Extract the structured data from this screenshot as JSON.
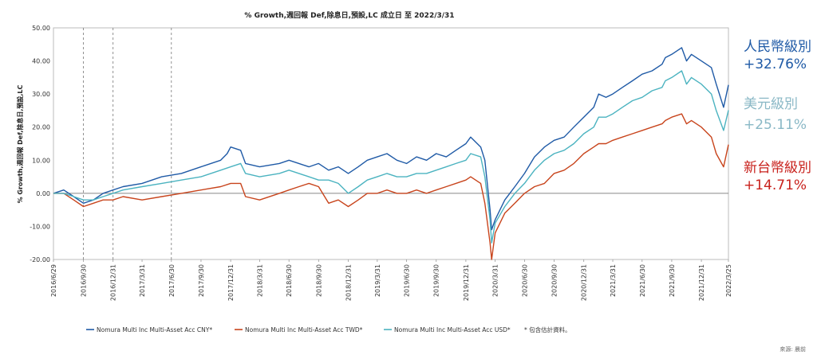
{
  "chart_data": {
    "type": "line",
    "title": "% Growth,週回報 Def,除息日,預設,LC 成立日 至 2022/3/31",
    "ylabel": "% Growth,週回報 Def,除息日,預設,LC",
    "ylim": [
      -20,
      50
    ],
    "yticks": [
      "50.00",
      "40.00",
      "30.00",
      "20.00",
      "10.00",
      "0.00",
      "-10.00",
      "-20.00"
    ],
    "ytick_values": [
      50,
      40,
      30,
      20,
      10,
      0,
      -10,
      -20
    ],
    "xlim": [
      "2016-06-29",
      "2022-03-25"
    ],
    "xticks": [
      "2016/6/29",
      "2016/9/30",
      "2016/12/31",
      "2017/3/31",
      "2017/6/30",
      "2017/9/30",
      "2017/12/31",
      "2018/3/31",
      "2018/6/30",
      "2018/9/30",
      "2018/12/31",
      "2019/3/31",
      "2019/6/30",
      "2019/9/30",
      "2019/12/31",
      "2020/3/31",
      "2020/6/30",
      "2020/9/30",
      "2020/12/31",
      "2021/3/31",
      "2021/6/30",
      "2021/9/30",
      "2021/12/31",
      "2022/3/25"
    ],
    "dashed_gridline_dates": [
      "2016-09-30",
      "2016-12-31",
      "2017-06-30"
    ],
    "grid": "vertical dashed lines at selected dates, solid zero line",
    "legend_position": "bottom",
    "series": [
      {
        "name": "Nomura Multi Inc Multi-Asset Acc CNY*",
        "color": "#1f5aa6",
        "x": [
          "2016-06-29",
          "2016-07-31",
          "2016-08-31",
          "2016-09-30",
          "2016-10-31",
          "2016-11-30",
          "2016-12-31",
          "2017-01-31",
          "2017-03-31",
          "2017-05-31",
          "2017-07-31",
          "2017-09-30",
          "2017-11-30",
          "2017-12-20",
          "2017-12-31",
          "2018-01-31",
          "2018-02-15",
          "2018-03-31",
          "2018-05-31",
          "2018-06-30",
          "2018-07-31",
          "2018-08-31",
          "2018-09-30",
          "2018-10-31",
          "2018-11-30",
          "2018-12-31",
          "2019-01-31",
          "2019-02-28",
          "2019-03-31",
          "2019-04-30",
          "2019-05-31",
          "2019-06-30",
          "2019-07-31",
          "2019-08-31",
          "2019-09-30",
          "2019-10-31",
          "2019-11-30",
          "2019-12-31",
          "2020-01-15",
          "2020-02-15",
          "2020-02-28",
          "2020-03-15",
          "2020-03-20",
          "2020-03-31",
          "2020-04-30",
          "2020-05-31",
          "2020-06-30",
          "2020-07-31",
          "2020-08-31",
          "2020-09-30",
          "2020-10-31",
          "2020-11-30",
          "2020-12-31",
          "2021-01-31",
          "2021-02-15",
          "2021-03-10",
          "2021-03-31",
          "2021-04-30",
          "2021-05-31",
          "2021-06-30",
          "2021-07-31",
          "2021-08-31",
          "2021-09-10",
          "2021-09-30",
          "2021-10-31",
          "2021-11-15",
          "2021-11-30",
          "2021-12-31",
          "2022-01-31",
          "2022-02-15",
          "2022-03-10",
          "2022-03-25"
        ],
        "values": [
          0,
          1,
          -1,
          -3,
          -2,
          0,
          1,
          2,
          3,
          5,
          6,
          8,
          10,
          12,
          14,
          13,
          9,
          8,
          9,
          10,
          9,
          8,
          9,
          7,
          8,
          6,
          8,
          10,
          11,
          12,
          10,
          9,
          11,
          10,
          12,
          11,
          13,
          15,
          17,
          14,
          10,
          -5,
          -11,
          -8,
          -2,
          2,
          6,
          11,
          14,
          16,
          17,
          20,
          23,
          26,
          30,
          29,
          30,
          32,
          34,
          36,
          37,
          39,
          41,
          42,
          44,
          40,
          42,
          40,
          38,
          33,
          26,
          32.76
        ]
      },
      {
        "name": "Nomura Multi Inc Multi-Asset Acc TWD*",
        "color": "#c8441c",
        "x": [
          "2016-06-29",
          "2016-07-31",
          "2016-08-31",
          "2016-09-30",
          "2016-10-31",
          "2016-11-30",
          "2016-12-31",
          "2017-01-31",
          "2017-03-31",
          "2017-05-31",
          "2017-07-31",
          "2017-09-30",
          "2017-11-30",
          "2017-12-31",
          "2018-01-31",
          "2018-02-15",
          "2018-03-31",
          "2018-05-31",
          "2018-06-30",
          "2018-07-31",
          "2018-08-31",
          "2018-09-30",
          "2018-10-31",
          "2018-11-30",
          "2018-12-31",
          "2019-01-31",
          "2019-02-28",
          "2019-03-31",
          "2019-04-30",
          "2019-05-31",
          "2019-06-30",
          "2019-07-31",
          "2019-08-31",
          "2019-09-30",
          "2019-10-31",
          "2019-11-30",
          "2019-12-31",
          "2020-01-15",
          "2020-02-15",
          "2020-02-28",
          "2020-03-15",
          "2020-03-20",
          "2020-03-31",
          "2020-04-30",
          "2020-05-31",
          "2020-06-30",
          "2020-07-31",
          "2020-08-31",
          "2020-09-30",
          "2020-10-31",
          "2020-11-30",
          "2020-12-31",
          "2021-01-31",
          "2021-02-15",
          "2021-03-10",
          "2021-03-31",
          "2021-04-30",
          "2021-05-31",
          "2021-06-30",
          "2021-07-31",
          "2021-08-31",
          "2021-09-10",
          "2021-09-30",
          "2021-10-31",
          "2021-11-15",
          "2021-11-30",
          "2021-12-31",
          "2022-01-31",
          "2022-02-15",
          "2022-03-10",
          "2022-03-25"
        ],
        "values": [
          0,
          0,
          -2,
          -4,
          -3,
          -2,
          -2,
          -1,
          -2,
          -1,
          0,
          1,
          2,
          3,
          3,
          -1,
          -2,
          0,
          1,
          2,
          3,
          2,
          -3,
          -2,
          -4,
          -2,
          0,
          0,
          1,
          0,
          0,
          1,
          0,
          1,
          2,
          3,
          4,
          5,
          3,
          -3,
          -15,
          -20,
          -12,
          -6,
          -3,
          0,
          2,
          3,
          6,
          7,
          9,
          12,
          14,
          15,
          15,
          16,
          17,
          18,
          19,
          20,
          21,
          22,
          23,
          24,
          21,
          22,
          20,
          17,
          12,
          8,
          14.71
        ]
      },
      {
        "name": "Nomura Multi Inc Multi-Asset Acc USD*",
        "color": "#4bb3c0",
        "x": [
          "2016-06-29",
          "2016-07-31",
          "2016-08-31",
          "2016-09-30",
          "2016-10-31",
          "2016-11-30",
          "2016-12-31",
          "2017-01-31",
          "2017-03-31",
          "2017-05-31",
          "2017-07-31",
          "2017-09-30",
          "2017-11-30",
          "2017-12-31",
          "2018-01-31",
          "2018-02-15",
          "2018-03-31",
          "2018-05-31",
          "2018-06-30",
          "2018-07-31",
          "2018-08-31",
          "2018-09-30",
          "2018-10-31",
          "2018-11-30",
          "2018-12-31",
          "2019-01-31",
          "2019-02-28",
          "2019-03-31",
          "2019-04-30",
          "2019-05-31",
          "2019-06-30",
          "2019-07-31",
          "2019-08-31",
          "2019-09-30",
          "2019-10-31",
          "2019-11-30",
          "2019-12-31",
          "2020-01-15",
          "2020-02-15",
          "2020-02-28",
          "2020-03-15",
          "2020-03-20",
          "2020-03-31",
          "2020-04-30",
          "2020-05-31",
          "2020-06-30",
          "2020-07-31",
          "2020-08-31",
          "2020-09-30",
          "2020-10-31",
          "2020-11-30",
          "2020-12-31",
          "2021-01-31",
          "2021-02-15",
          "2021-03-10",
          "2021-03-31",
          "2021-04-30",
          "2021-05-31",
          "2021-06-30",
          "2021-07-31",
          "2021-08-31",
          "2021-09-10",
          "2021-09-30",
          "2021-10-31",
          "2021-11-15",
          "2021-11-30",
          "2021-12-31",
          "2022-01-31",
          "2022-02-15",
          "2022-03-10",
          "2022-03-25"
        ],
        "values": [
          0,
          0,
          -1,
          -2,
          -2,
          -1,
          0,
          1,
          2,
          3,
          4,
          5,
          7,
          8,
          9,
          6,
          5,
          6,
          7,
          6,
          5,
          4,
          4,
          3,
          0,
          2,
          4,
          5,
          6,
          5,
          5,
          6,
          6,
          7,
          8,
          9,
          10,
          12,
          11,
          5,
          -8,
          -15,
          -9,
          -4,
          0,
          3,
          7,
          10,
          12,
          13,
          15,
          18,
          20,
          23,
          23,
          24,
          26,
          28,
          29,
          31,
          32,
          34,
          35,
          37,
          33,
          35,
          33,
          30,
          25,
          19,
          25.11
        ]
      }
    ],
    "callouts": [
      {
        "name": "人民幣級別",
        "value": "+32.76%",
        "color": "#1f5aa6"
      },
      {
        "name": "美元級別",
        "value": "+25.11%",
        "color": "#8ab8c6"
      },
      {
        "name": "新台幣級別",
        "value": "+14.71%",
        "color": "#c8211c"
      }
    ],
    "legend_note": "* 包含估計資料。",
    "source": "來源: 晨前"
  }
}
